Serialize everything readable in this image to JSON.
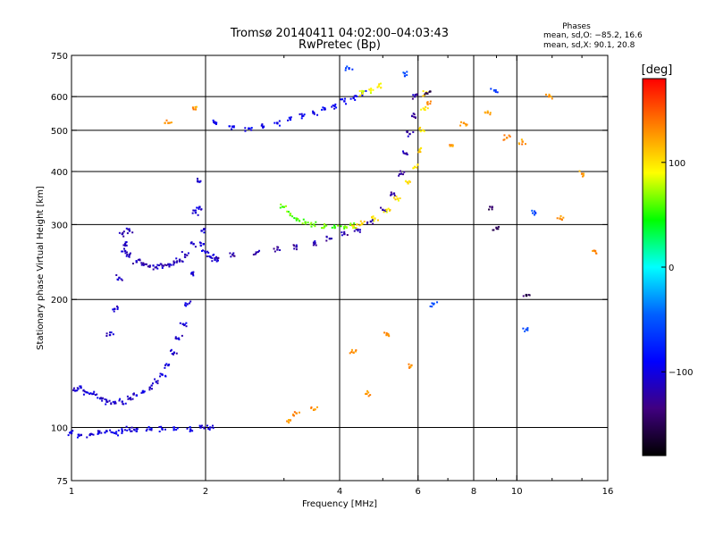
{
  "chart_data": {
    "type": "scatter",
    "title": "Tromsø 20140411 04:02:00–04:03:43",
    "subtitle": "RwPretec (Bp)",
    "xlabel": "Frequency [MHz]",
    "ylabel": "Stationary phase Virtual Height [km]",
    "x_scale": "log",
    "y_scale": "log",
    "xlim": [
      1,
      16
    ],
    "ylim": [
      75,
      750
    ],
    "x_ticks": [
      1,
      2,
      4,
      6,
      8,
      10,
      16
    ],
    "x_tick_labels": [
      "1",
      "2",
      "4",
      "6",
      "8",
      "10",
      "16"
    ],
    "x_grid": [
      2,
      4,
      6,
      8,
      10
    ],
    "y_ticks": [
      75,
      100,
      200,
      300,
      400,
      500,
      600,
      750
    ],
    "y_tick_labels": [
      "75",
      "100",
      "200",
      "300",
      "400",
      "500",
      "600",
      "750"
    ],
    "y_grid": [
      100,
      200,
      300,
      400,
      500,
      600
    ],
    "grid": true,
    "phase_info": {
      "heading": "Phases",
      "line_o": "mean, sd,O: −85.2, 16.6",
      "line_x": "mean, sd,X:  90.1, 20.8"
    },
    "colorbar": {
      "unit": "[deg]",
      "range": [
        -180,
        180
      ],
      "ticks": [
        100,
        0,
        -100
      ],
      "tick_labels": [
        "100",
        "0",
        "−100"
      ],
      "colors": [
        "#ff0000",
        "#ff8000",
        "#ffff00",
        "#00ff00",
        "#00ffff",
        "#0060ff",
        "#0000ff",
        "#400080",
        "#000000"
      ]
    },
    "series": [
      {
        "phase": -100,
        "points": [
          [
            1.0,
            97
          ],
          [
            1.05,
            96
          ],
          [
            1.1,
            96
          ],
          [
            1.15,
            97
          ],
          [
            1.2,
            98
          ],
          [
            1.25,
            97
          ],
          [
            1.3,
            98
          ],
          [
            1.35,
            99
          ],
          [
            1.4,
            98
          ],
          [
            1.5,
            99
          ],
          [
            1.6,
            99
          ],
          [
            1.7,
            100
          ],
          [
            1.85,
            99
          ],
          [
            1.95,
            100
          ],
          [
            2.05,
            100
          ]
        ]
      },
      {
        "phase": -105,
        "points": [
          [
            1.02,
            122
          ],
          [
            1.05,
            124
          ],
          [
            1.08,
            121
          ],
          [
            1.12,
            120
          ],
          [
            1.16,
            117
          ],
          [
            1.2,
            115
          ],
          [
            1.25,
            114
          ],
          [
            1.3,
            115
          ],
          [
            1.35,
            117
          ],
          [
            1.4,
            119
          ],
          [
            1.45,
            121
          ],
          [
            1.5,
            124
          ],
          [
            1.55,
            128
          ],
          [
            1.6,
            133
          ],
          [
            1.65,
            140
          ],
          [
            1.7,
            150
          ],
          [
            1.74,
            162
          ],
          [
            1.78,
            175
          ],
          [
            1.82,
            195
          ],
          [
            1.86,
            230
          ],
          [
            1.88,
            270
          ],
          [
            1.9,
            320
          ],
          [
            1.92,
            380
          ],
          [
            1.94,
            330
          ],
          [
            1.96,
            290
          ],
          [
            1.98,
            270
          ],
          [
            2.0,
            258
          ],
          [
            2.05,
            252
          ],
          [
            2.1,
            248
          ]
        ]
      },
      {
        "phase": -115,
        "points": [
          [
            1.3,
            285
          ],
          [
            1.32,
            270
          ],
          [
            1.35,
            255
          ],
          [
            1.4,
            245
          ],
          [
            1.45,
            242
          ],
          [
            1.5,
            240
          ],
          [
            1.55,
            238
          ],
          [
            1.6,
            240
          ],
          [
            1.65,
            242
          ],
          [
            1.7,
            244
          ],
          [
            1.75,
            248
          ],
          [
            1.8,
            255
          ]
        ]
      },
      {
        "phase": -110,
        "points": [
          [
            1.22,
            165
          ],
          [
            1.25,
            190
          ],
          [
            1.28,
            225
          ],
          [
            1.32,
            260
          ],
          [
            1.35,
            290
          ]
        ]
      },
      {
        "phase": -120,
        "points": [
          [
            2.1,
            250
          ],
          [
            2.3,
            255
          ],
          [
            2.6,
            258
          ],
          [
            2.9,
            262
          ],
          [
            3.2,
            266
          ],
          [
            3.5,
            272
          ],
          [
            3.8,
            278
          ],
          [
            4.1,
            285
          ],
          [
            4.4,
            292
          ],
          [
            4.7,
            305
          ],
          [
            5.0,
            325
          ],
          [
            5.3,
            355
          ],
          [
            5.5,
            395
          ],
          [
            5.65,
            440
          ],
          [
            5.75,
            490
          ],
          [
            5.82,
            540
          ],
          [
            5.9,
            600
          ]
        ]
      },
      {
        "phase": -95,
        "points": [
          [
            2.1,
            520
          ],
          [
            2.3,
            510
          ],
          [
            2.5,
            505
          ],
          [
            2.7,
            510
          ],
          [
            2.9,
            520
          ],
          [
            3.1,
            530
          ],
          [
            3.3,
            540
          ],
          [
            3.5,
            550
          ],
          [
            3.7,
            560
          ],
          [
            3.9,
            570
          ],
          [
            4.1,
            585
          ],
          [
            4.3,
            595
          ],
          [
            4.5,
            610
          ]
        ]
      },
      {
        "phase": 60,
        "points": [
          [
            3.0,
            330
          ],
          [
            3.1,
            318
          ],
          [
            3.2,
            310
          ],
          [
            3.35,
            304
          ],
          [
            3.5,
            300
          ],
          [
            3.7,
            297
          ],
          [
            3.9,
            296
          ],
          [
            4.1,
            296
          ],
          [
            4.3,
            298
          ]
        ]
      },
      {
        "phase": 100,
        "points": [
          [
            4.3,
            298
          ],
          [
            4.5,
            302
          ],
          [
            4.8,
            310
          ],
          [
            5.1,
            325
          ],
          [
            5.4,
            345
          ],
          [
            5.7,
            375
          ],
          [
            5.9,
            410
          ],
          [
            6.05,
            450
          ],
          [
            6.15,
            500
          ],
          [
            6.2,
            560
          ],
          [
            6.25,
            610
          ]
        ]
      },
      {
        "phase": 90,
        "points": [
          [
            4.5,
            610
          ],
          [
            4.7,
            620
          ],
          [
            4.9,
            635
          ]
        ]
      },
      {
        "phase": 130,
        "points": [
          [
            1.65,
            520
          ],
          [
            1.9,
            560
          ],
          [
            3.1,
            104
          ],
          [
            3.2,
            108
          ],
          [
            3.5,
            110
          ],
          [
            4.3,
            150
          ],
          [
            4.6,
            120
          ],
          [
            5.1,
            165
          ],
          [
            5.8,
            140
          ],
          [
            6.3,
            580
          ],
          [
            7.1,
            460
          ],
          [
            7.6,
            520
          ],
          [
            8.6,
            550
          ],
          [
            9.5,
            480
          ],
          [
            10.3,
            470
          ],
          [
            11.8,
            600
          ],
          [
            12.5,
            310
          ],
          [
            14.0,
            395
          ],
          [
            15.0,
            260
          ]
        ]
      },
      {
        "phase": -60,
        "points": [
          [
            4.2,
            700
          ],
          [
            5.6,
            680
          ],
          [
            6.5,
            195
          ],
          [
            8.9,
            620
          ],
          [
            11.0,
            320
          ],
          [
            10.5,
            170
          ]
        ]
      },
      {
        "phase": -150,
        "points": [
          [
            6.3,
            610
          ],
          [
            8.8,
            330
          ],
          [
            10.5,
            205
          ],
          [
            9.0,
            295
          ]
        ]
      }
    ]
  }
}
